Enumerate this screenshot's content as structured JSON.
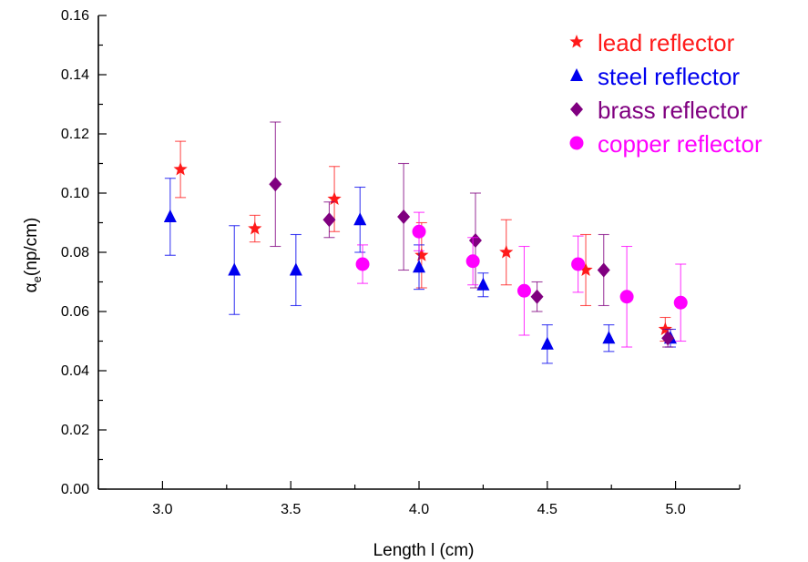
{
  "chart_data": {
    "type": "scatter",
    "title": "",
    "xlabel": "Length l (cm)",
    "ylabel_main": "α",
    "ylabel_sub": "e",
    "ylabel_rest": "(np/cm)",
    "xlim": [
      2.75,
      5.25
    ],
    "ylim": [
      0.0,
      0.16
    ],
    "xticks": [
      "3.0",
      "3.5",
      "4.0",
      "4.5",
      "5.0"
    ],
    "yticks": [
      "0.00",
      "0.02",
      "0.04",
      "0.06",
      "0.08",
      "0.10",
      "0.12",
      "0.14",
      "0.16"
    ],
    "grid": false,
    "legend_position": "top-right",
    "series": [
      {
        "name": "lead reflector",
        "color": "#ff1a1a",
        "marker": "star",
        "points": [
          {
            "x": 3.07,
            "y": 0.108,
            "err": 0.0095
          },
          {
            "x": 3.36,
            "y": 0.088,
            "err": 0.0045
          },
          {
            "x": 3.67,
            "y": 0.098,
            "err": 0.011
          },
          {
            "x": 4.01,
            "y": 0.079,
            "err": 0.011
          },
          {
            "x": 4.34,
            "y": 0.08,
            "err": 0.011
          },
          {
            "x": 4.65,
            "y": 0.074,
            "err": 0.012
          },
          {
            "x": 4.96,
            "y": 0.054,
            "err": 0.004
          }
        ]
      },
      {
        "name": "steel reflector",
        "color": "#0000ee",
        "marker": "triangle",
        "points": [
          {
            "x": 3.03,
            "y": 0.092,
            "err": 0.013
          },
          {
            "x": 3.28,
            "y": 0.074,
            "err": 0.015
          },
          {
            "x": 3.52,
            "y": 0.074,
            "err": 0.012
          },
          {
            "x": 3.77,
            "y": 0.091,
            "err": 0.011
          },
          {
            "x": 4.0,
            "y": 0.075,
            "err": 0.0075
          },
          {
            "x": 4.25,
            "y": 0.069,
            "err": 0.004
          },
          {
            "x": 4.5,
            "y": 0.049,
            "err": 0.0065
          },
          {
            "x": 4.74,
            "y": 0.051,
            "err": 0.0045
          },
          {
            "x": 4.98,
            "y": 0.051,
            "err": 0.003
          }
        ]
      },
      {
        "name": "brass reflector",
        "color": "#800080",
        "marker": "diamond",
        "points": [
          {
            "x": 3.44,
            "y": 0.103,
            "err": 0.021
          },
          {
            "x": 3.65,
            "y": 0.091,
            "err": 0.006
          },
          {
            "x": 3.94,
            "y": 0.092,
            "err": 0.018
          },
          {
            "x": 4.22,
            "y": 0.084,
            "err": 0.016
          },
          {
            "x": 4.46,
            "y": 0.065,
            "err": 0.005
          },
          {
            "x": 4.72,
            "y": 0.074,
            "err": 0.012
          },
          {
            "x": 4.97,
            "y": 0.051,
            "err": 0.003
          }
        ]
      },
      {
        "name": "copper reflector",
        "color": "#ff00ff",
        "marker": "circle",
        "points": [
          {
            "x": 3.78,
            "y": 0.076,
            "err": 0.0065
          },
          {
            "x": 4.0,
            "y": 0.087,
            "err": 0.0065
          },
          {
            "x": 4.21,
            "y": 0.077,
            "err": 0.008
          },
          {
            "x": 4.41,
            "y": 0.067,
            "err": 0.015
          },
          {
            "x": 4.62,
            "y": 0.076,
            "err": 0.0095
          },
          {
            "x": 4.81,
            "y": 0.065,
            "err": 0.017
          },
          {
            "x": 5.02,
            "y": 0.063,
            "err": 0.013
          }
        ]
      }
    ]
  }
}
